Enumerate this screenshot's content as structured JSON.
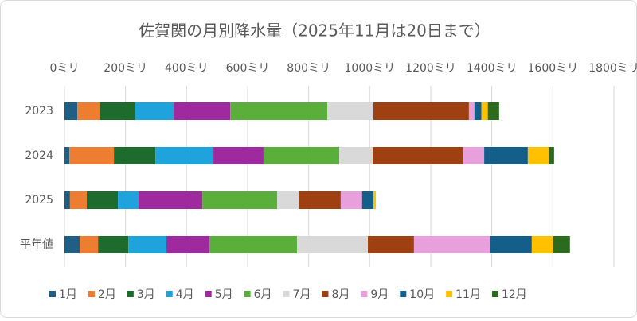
{
  "chart_data": {
    "type": "stacked_barh",
    "title": "佐賀関の月別降水量（2025年11月は20日まで）",
    "categories": [
      "2023",
      "2024",
      "2025",
      "平年値"
    ],
    "series": [
      {
        "name": "1月",
        "color": "#1f5f86",
        "values": [
          42,
          16,
          18,
          50
        ]
      },
      {
        "name": "2月",
        "color": "#ed7d31",
        "values": [
          73,
          146,
          55,
          60
        ]
      },
      {
        "name": "3月",
        "color": "#1e6b2e",
        "values": [
          115,
          136,
          102,
          99
        ]
      },
      {
        "name": "4月",
        "color": "#1ea3dc",
        "values": [
          128,
          190,
          68,
          125
        ]
      },
      {
        "name": "5月",
        "color": "#9e2a9e",
        "values": [
          185,
          164,
          209,
          141
        ]
      },
      {
        "name": "6月",
        "color": "#5aaf3a",
        "values": [
          318,
          248,
          245,
          287
        ]
      },
      {
        "name": "7月",
        "color": "#d9d9d9",
        "values": [
          151,
          110,
          70,
          232
        ]
      },
      {
        "name": "8月",
        "color": "#9e4010",
        "values": [
          313,
          297,
          138,
          151
        ]
      },
      {
        "name": "9月",
        "color": "#e8a0dc",
        "values": [
          18,
          68,
          70,
          250
        ]
      },
      {
        "name": "10月",
        "color": "#135f8a",
        "values": [
          23,
          143,
          37,
          136
        ]
      },
      {
        "name": "11月",
        "color": "#ffc000",
        "values": [
          21,
          68,
          8,
          70
        ]
      },
      {
        "name": "12月",
        "color": "#2c6a1e",
        "values": [
          37,
          18,
          null,
          55
        ]
      }
    ],
    "xlim": [
      0,
      1800
    ],
    "xticks": [
      {
        "value": 0,
        "label": "0ミリ"
      },
      {
        "value": 200,
        "label": "200ミリ"
      },
      {
        "value": 400,
        "label": "400ミリ"
      },
      {
        "value": 600,
        "label": "600ミリ"
      },
      {
        "value": 800,
        "label": "800ミリ"
      },
      {
        "value": 1000,
        "label": "1000ミリ"
      },
      {
        "value": 1200,
        "label": "1200ミリ"
      },
      {
        "value": 1400,
        "label": "1400ミリ"
      },
      {
        "value": 1600,
        "label": "1600ミリ"
      },
      {
        "value": 1800,
        "label": "1800ミリ"
      }
    ],
    "grid": true,
    "legend": "bottom"
  }
}
